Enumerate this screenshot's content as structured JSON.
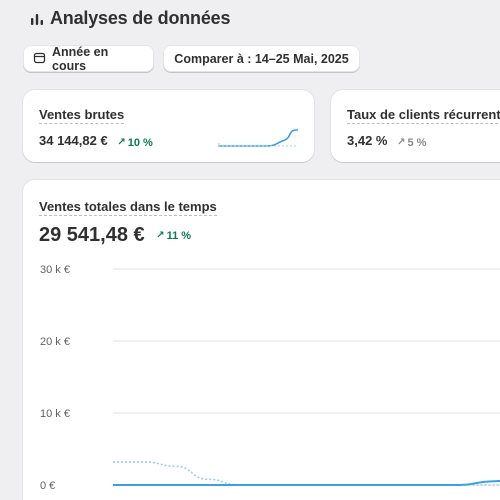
{
  "header": {
    "title": "Analyses de données",
    "icon": "bar-chart-icon"
  },
  "filters": {
    "period_label": "Année en cours",
    "compare_label": "Comparer à : 14–25 Mai, 2025"
  },
  "kpis": [
    {
      "label": "Ventes brutes",
      "value": "34 144,82 €",
      "delta": "10 %",
      "trend": "up"
    },
    {
      "label": "Taux de clients récurrents",
      "value": "3,42 %",
      "delta": "5 %",
      "trend": "up-muted"
    }
  ],
  "main_chart": {
    "title": "Ventes totales dans le temps",
    "value": "29 541,48 €",
    "delta": "11 %",
    "y_ticks": [
      "30 k €",
      "20 k €",
      "10 k €",
      "0 €"
    ]
  },
  "colors": {
    "accent": "#3aa0e0",
    "comparison": "#9fcdf0",
    "positive": "#0a7a55"
  },
  "chart_data": {
    "type": "line",
    "ylim": [
      0,
      30000
    ],
    "y_ticks": [
      "30 k €",
      "20 k €",
      "10 k €",
      "0 €"
    ],
    "series": [
      {
        "values": [
          0,
          0,
          0,
          0,
          0,
          0,
          0,
          0,
          0,
          0,
          0,
          0,
          500,
          900
        ]
      },
      {
        "values": [
          3200,
          3200,
          2600,
          800,
          0,
          0,
          0,
          0,
          0,
          0,
          0,
          0,
          0,
          0
        ]
      }
    ]
  }
}
